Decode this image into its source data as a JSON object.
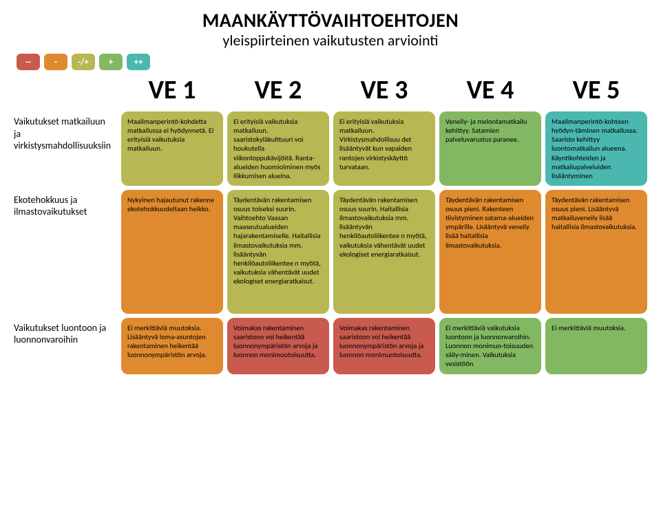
{
  "title": "MAANKÄYTTÖVAIHTOEHTOJEN",
  "subtitle": "yleispiirteinen vaikutusten arviointi",
  "colors": {
    "mm": "#c85a4e",
    "m": "#e08a2f",
    "neutral": "#b7b753",
    "p": "#82b862",
    "pp": "#4bb8b0"
  },
  "legend": [
    {
      "label": "--",
      "colorKey": "mm"
    },
    {
      "label": "-",
      "colorKey": "m"
    },
    {
      "label": "-/+",
      "colorKey": "neutral"
    },
    {
      "label": "+",
      "colorKey": "p"
    },
    {
      "label": "++",
      "colorKey": "pp"
    }
  ],
  "columns": [
    "VE 1",
    "VE 2",
    "VE 3",
    "VE 4",
    "VE 5"
  ],
  "rows": [
    {
      "label": "Vaikutukset matkailuun ja virkistysmahdollisuuksiin",
      "cells": [
        {
          "text": "Maailmanperintö-kohdetta matkailussa ei hyödynnetä. Ei erityisiä vaikutuksia matkailuun.",
          "colorKey": "neutral"
        },
        {
          "text": "Ei erityisiä vaikutuksia matkailuun, saaristokyläkulttuuri voi houkutella viikonloppukävijöitä. Ranta-alueiden huomioiminen myös liikkumisen alueina.",
          "colorKey": "neutral"
        },
        {
          "text": "Ei erityisiä vaikutuksia matkailuun. Virkistysmahdollisuu det lisääntyvät kun vapaiden rantojen virkistyskäyttö turvataan.",
          "colorKey": "neutral"
        },
        {
          "text": "Veneily- ja melontamatkailu kehittyy. Satamien palveluvarustus paranee.",
          "colorKey": "p"
        },
        {
          "text": "Maailmanperintö-kohteen hyödyn-täminen matkailussa. Saaristo kehittyy luontomatkailun alueena. Käyntikohteiden ja matkailupalveluiden lisääntyminen",
          "colorKey": "pp"
        }
      ]
    },
    {
      "label": "Ekotehokkuus ja ilmastovaikutukset",
      "cells": [
        {
          "text": "Nykyinen hajautunut rakenne ekotehokkuudeltaan heikko.",
          "colorKey": "m"
        },
        {
          "text": "Täydentävän rakentamisen osuus toiseksi suurin. Vaihtoehto Vaasan maaseutualueiden hajarakentamiselle. Haitallisia ilmastovaikutuksia mm. lisääntyvän henkilöautoliikentee n myötä, vaikutuksia vähentävät uudet ekologiset energiaratkaisut.",
          "colorKey": "neutral"
        },
        {
          "text": "Täydentävän rakentamisen osuus suurin. Haitallisia ilmastovaikutuksia mm. lisääntyvän henkilöautoliikentee n myötä, vaikutuksia vähentävät uudet ekologiset energiaratkaisut.",
          "colorKey": "neutral"
        },
        {
          "text": "Täydentävän rakentamisen osuus pieni. Rakenteen tiivistyminen satama-alueiden ympärille. Lisääntyvä veneily lisää haitallisia ilmastovaikutuksia.",
          "colorKey": "m"
        },
        {
          "text": "Täydentävän rakentamisen osuus pieni. Lisääntyvä matkailuveneily lisää haitallisia ilmastovaikutuksia.",
          "colorKey": "m"
        }
      ]
    },
    {
      "label": "Vaikutukset luontoon ja luonnonvaroihin",
      "cells": [
        {
          "text": "Ei merkittäviä muutoksia. Lisääntyvä loma-asuntojen rakentaminen heikentää luonnonympäristön arvoja.",
          "colorKey": "m"
        },
        {
          "text": "Voimakas rakentaminen saaristoon voi heikentää luonnonympäristön arvoja ja luonnon monimuotoisuutta.",
          "colorKey": "mm"
        },
        {
          "text": "Voimakas rakentaminen saaristoon voi heikentää luonnonympäristön arvoja ja luonnon monimuotoisuutta.",
          "colorKey": "mm"
        },
        {
          "text": "Ei merkittäviä vaikutuksia luontoon ja luonnonvaroihin. Luonnon monimuo-toisuuden säily-minen. Vaikutuksia vesistöön",
          "colorKey": "p"
        },
        {
          "text": "Ei merkittäviä muutoksia.",
          "colorKey": "p"
        }
      ]
    }
  ]
}
